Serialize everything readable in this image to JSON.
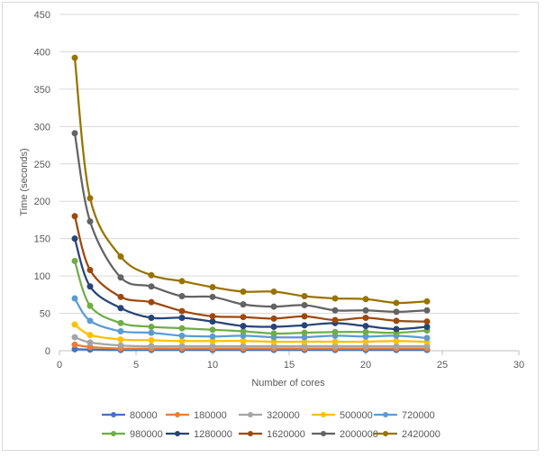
{
  "chart_data": {
    "type": "line",
    "title": "",
    "xlabel": "Number  of cores",
    "ylabel": "Time (seconds)",
    "xlim": [
      0,
      30
    ],
    "ylim": [
      0,
      450
    ],
    "x_ticks": [
      "0",
      "5",
      "10",
      "15",
      "20",
      "25",
      "30"
    ],
    "y_ticks": [
      "0",
      "50",
      "100",
      "150",
      "200",
      "250",
      "300",
      "350",
      "400",
      "450"
    ],
    "grid": "horizontal",
    "legend_position": "bottom",
    "x": [
      1,
      2,
      4,
      6,
      8,
      10,
      12,
      14,
      16,
      18,
      20,
      22,
      24
    ],
    "series": [
      {
        "name": "80000",
        "color": "#4472c4",
        "values": [
          2,
          1.5,
          1,
          1,
          1,
          1,
          1,
          1,
          1,
          1,
          1,
          1,
          1
        ]
      },
      {
        "name": "180000",
        "color": "#ed7d31",
        "values": [
          8,
          5,
          3,
          3,
          3,
          3,
          3,
          3,
          3,
          3,
          3,
          3,
          3
        ]
      },
      {
        "name": "320000",
        "color": "#a5a5a5",
        "values": [
          18,
          11,
          7,
          6,
          6,
          6,
          6,
          6,
          6,
          6,
          6,
          6,
          6
        ]
      },
      {
        "name": "500000",
        "color": "#ffc000",
        "values": [
          35,
          21,
          15,
          14,
          13,
          13,
          13,
          12,
          12,
          12,
          12,
          13,
          12
        ]
      },
      {
        "name": "720000",
        "color": "#5b9bd5",
        "values": [
          70,
          40,
          26,
          24,
          20,
          19,
          20,
          18,
          18,
          20,
          19,
          20,
          17
        ]
      },
      {
        "name": "980000",
        "color": "#70ad47",
        "values": [
          120,
          60,
          37,
          32,
          30,
          28,
          26,
          23,
          24,
          25,
          25,
          24,
          27
        ]
      },
      {
        "name": "1280000",
        "color": "#264478",
        "values": [
          150,
          86,
          57,
          44,
          44,
          39,
          33,
          32,
          34,
          37,
          33,
          29,
          32
        ]
      },
      {
        "name": "1620000",
        "color": "#9e480e",
        "values": [
          180,
          108,
          72,
          65,
          53,
          46,
          45,
          43,
          46,
          41,
          44,
          40,
          39
        ]
      },
      {
        "name": "2000000",
        "color": "#636363",
        "values": [
          291,
          173,
          98,
          86,
          73,
          72,
          62,
          59,
          61,
          54,
          54,
          52,
          54
        ]
      },
      {
        "name": "2420000",
        "color": "#997300",
        "values": [
          392,
          204,
          126,
          101,
          93,
          85,
          79,
          79,
          73,
          70,
          69,
          64,
          66
        ]
      }
    ]
  }
}
